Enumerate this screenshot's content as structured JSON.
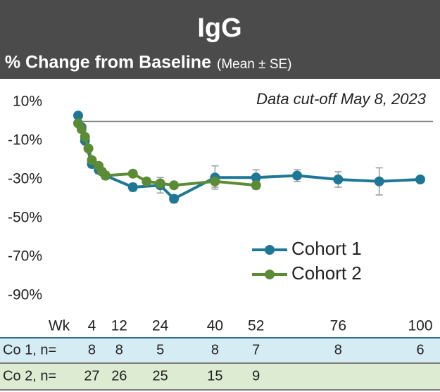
{
  "chart_data": {
    "type": "line",
    "title": "IgG",
    "subtitle": "% Change from Baseline",
    "subtitle_note": "(Mean ± SE)",
    "annotation": "Data cut-off May 8, 2023",
    "x_axis_label": "Wk",
    "xlim": [
      0,
      100
    ],
    "xticks": [
      4,
      12,
      24,
      40,
      52,
      76,
      100
    ],
    "ylim": [
      -90,
      10
    ],
    "yticks": [
      {
        "value": 10,
        "label": "10%"
      },
      {
        "value": -10,
        "label": "-10%"
      },
      {
        "value": -30,
        "label": "-30%"
      },
      {
        "value": -50,
        "label": "-50%"
      },
      {
        "value": -70,
        "label": "-70%"
      },
      {
        "value": -90,
        "label": "-90%"
      }
    ],
    "reference_line": 0,
    "legend": "lower right",
    "series": [
      {
        "name": "Cohort 1",
        "color": "#1f7796",
        "x": [
          0,
          1,
          2,
          4,
          6,
          8,
          16,
          24,
          28,
          40,
          52,
          64,
          76,
          88,
          100
        ],
        "values": [
          3,
          -3,
          -10,
          -22,
          -25,
          -28,
          -34,
          -33,
          -40,
          -29,
          -29,
          -28,
          -30,
          -31,
          -30
        ],
        "errors": [
          1,
          1,
          1,
          2,
          2,
          2,
          2,
          4,
          2,
          6,
          4,
          3,
          4,
          7,
          1
        ]
      },
      {
        "name": "Cohort 2",
        "color": "#5b8c35",
        "x": [
          0,
          1,
          2,
          3,
          4,
          6,
          7,
          8,
          16,
          20,
          24,
          28,
          40,
          52
        ],
        "values": [
          -1,
          -4,
          -8,
          -14,
          -20,
          -23,
          -26,
          -28,
          -27,
          -31,
          -32,
          -33,
          -31,
          -33
        ],
        "errors": [
          1,
          1,
          1,
          1,
          1,
          1,
          1,
          1,
          1,
          1,
          1,
          1,
          3,
          2
        ]
      }
    ],
    "table": [
      {
        "label": "Co 1, n=",
        "color": "#d6ecf4",
        "counts": [
          8,
          8,
          5,
          8,
          7,
          8,
          6
        ]
      },
      {
        "label": "Co 2, n=",
        "color": "#dcebd2",
        "counts": [
          27,
          26,
          25,
          15,
          9
        ]
      }
    ]
  }
}
